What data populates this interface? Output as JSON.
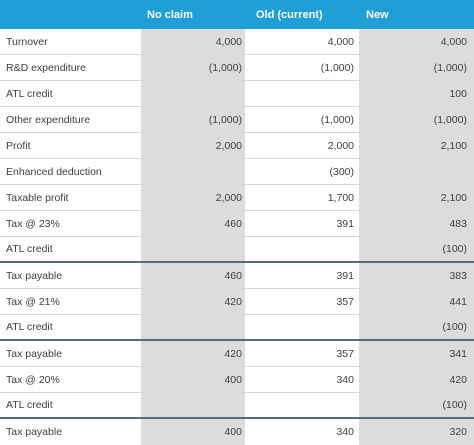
{
  "header": {
    "col1": "No claim",
    "col2": "Old (current)",
    "col3": "New"
  },
  "rows": [
    {
      "label": "Turnover",
      "no_claim": "4,000",
      "old": "4,000",
      "new": "4,000"
    },
    {
      "label": "R&D expenditure",
      "no_claim": "(1,000)",
      "old": "(1,000)",
      "new": "(1,000)"
    },
    {
      "label": "ATL credit",
      "no_claim": "",
      "old": "",
      "new": "100"
    },
    {
      "label": "Other expenditure",
      "no_claim": "(1,000)",
      "old": "(1,000)",
      "new": "(1,000)"
    },
    {
      "label": "Profit",
      "no_claim": "2,000",
      "old": "2,000",
      "new": "2,100"
    },
    {
      "label": "Enhanced deduction",
      "no_claim": "",
      "old": "(300)",
      "new": ""
    },
    {
      "label": "Taxable profit",
      "no_claim": "2,000",
      "old": "1,700",
      "new": "2,100"
    },
    {
      "label": "Tax @ 23%",
      "no_claim": "460",
      "old": "391",
      "new": "483"
    },
    {
      "label": "ATL credit",
      "no_claim": "",
      "old": "",
      "new": "(100)"
    },
    {
      "label": "Tax payable",
      "no_claim": "460",
      "old": "391",
      "new": "383"
    },
    {
      "label": "Tax @ 21%",
      "no_claim": "420",
      "old": "357",
      "new": "441"
    },
    {
      "label": "ATL credit",
      "no_claim": "",
      "old": "",
      "new": "(100)"
    },
    {
      "label": "Tax payable",
      "no_claim": "420",
      "old": "357",
      "new": "341"
    },
    {
      "label": "Tax @ 20%",
      "no_claim": "400",
      "old": "340",
      "new": "420"
    },
    {
      "label": "ATL credit",
      "no_claim": "",
      "old": "",
      "new": "(100)"
    },
    {
      "label": "Tax payable",
      "no_claim": "400",
      "old": "340",
      "new": "320"
    }
  ]
}
